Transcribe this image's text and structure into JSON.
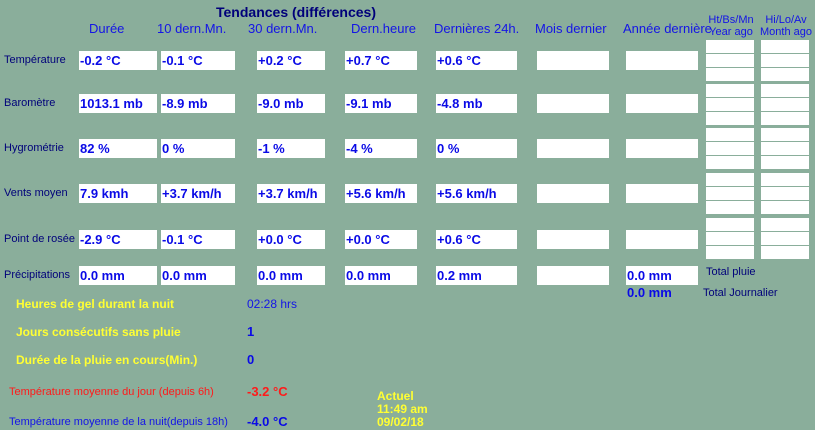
{
  "title": "Tendances (différences)",
  "columns": [
    "Durée",
    "10 dern.Mn.",
    "30 dern.Mn.",
    "Dern.heure",
    "Dernières 24h.",
    "Mois dernier",
    "Année dernière"
  ],
  "side_headers": {
    "year": [
      "Ht/Bs/Mn",
      "Year ago"
    ],
    "month": [
      "Hi/Lo/Av",
      "Month ago"
    ]
  },
  "rows": [
    {
      "label": "Température",
      "values": [
        "-0.2 °C",
        "-0.1 °C",
        "+0.2 °C",
        "+0.7 °C",
        "+0.6 °C",
        "",
        ""
      ]
    },
    {
      "label": "Baromètre",
      "values": [
        "1013.1 mb",
        "-8.9 mb",
        "-9.0 mb",
        "-9.1 mb",
        "-4.8 mb",
        "",
        ""
      ]
    },
    {
      "label": "Hygrométrie",
      "values": [
        "82 %",
        " 0 %",
        "-1 %",
        "-4 %",
        " 0 %",
        "",
        ""
      ]
    },
    {
      "label": "Vents moyen",
      "values": [
        "7.9 kmh",
        "+3.7 km/h",
        "+3.7 km/h",
        "+5.6 km/h",
        "+5.6 km/h",
        "",
        ""
      ]
    },
    {
      "label": "Point de rosée",
      "values": [
        "-2.9 °C",
        "-0.1 °C",
        "+0.0 °C",
        "+0.0 °C",
        "+0.6 °C",
        "",
        ""
      ]
    },
    {
      "label": "Précipitations",
      "values": [
        "0.0 mm",
        "0.0 mm",
        "0.0 mm",
        "0.0 mm",
        "0.2 mm",
        "",
        "0.0 mm"
      ]
    }
  ],
  "totals": {
    "total_pluie_label": "Total pluie",
    "total_journalier_value": "0.0 mm",
    "total_journalier_label": "Total Journalier"
  },
  "stats": {
    "gel_label": "Heures de gel durant la nuit",
    "gel_value": "02:28 hrs",
    "sans_pluie_label": "Jours consécutifs sans pluie",
    "sans_pluie_value": "1",
    "duree_pluie_label": "Durée de la pluie en cours(Min.)",
    "duree_pluie_value": "0",
    "temp_jour_label": "Température moyenne du jour (depuis 6h)",
    "temp_jour_value": "-3.2 °C",
    "temp_nuit_label": "Température moyenne de la nuit(depuis 18h)",
    "temp_nuit_value": "-4.0 °C"
  },
  "actuel": {
    "label": "Actuel",
    "time": "11:49 am",
    "date": "09/02/18"
  },
  "colors": {
    "background": "#8aae9b",
    "header": "#00007a",
    "value": "#0a0ae6",
    "yellow": "#ffff33",
    "red": "#ff1a1a"
  }
}
